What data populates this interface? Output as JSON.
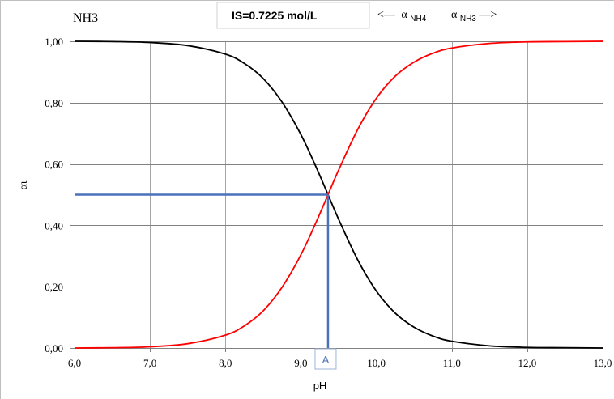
{
  "chart_data": {
    "type": "line",
    "title": "NH3",
    "subtitle": "IS=0.7225 mol/L",
    "legend": {
      "left": {
        "arrow": "<—",
        "symbol": "α",
        "sub": "NH4"
      },
      "right": {
        "symbol": "α",
        "sub": "NH3",
        "arrow": "—>"
      }
    },
    "xlabel": "pH",
    "ylabel": "αι",
    "xlim": [
      6.0,
      13.0
    ],
    "ylim": [
      0.0,
      1.0
    ],
    "x_ticks": [
      "6,0",
      "7,0",
      "8,0",
      "9,0",
      "10,0",
      "11,0",
      "12,0",
      "13,0"
    ],
    "y_ticks": [
      "0,00",
      "0,20",
      "0,40",
      "0,60",
      "0,80",
      "1,00"
    ],
    "grid": true,
    "series": [
      {
        "name": "αNH4",
        "color": "#000000",
        "x": [
          6.0,
          6.5,
          7.0,
          7.5,
          8.0,
          8.25,
          8.5,
          8.75,
          9.0,
          9.2,
          9.36,
          9.5,
          9.75,
          10.0,
          10.25,
          10.5,
          10.75,
          11.0,
          11.5,
          12.0,
          12.5,
          13.0
        ],
        "values": [
          1.0,
          0.999,
          0.996,
          0.986,
          0.958,
          0.928,
          0.879,
          0.802,
          0.696,
          0.591,
          0.5,
          0.42,
          0.289,
          0.186,
          0.114,
          0.068,
          0.039,
          0.022,
          0.007,
          0.002,
          0.001,
          0.0
        ]
      },
      {
        "name": "αNH3",
        "color": "#ff0000",
        "x": [
          6.0,
          6.5,
          7.0,
          7.5,
          8.0,
          8.25,
          8.5,
          8.75,
          9.0,
          9.2,
          9.36,
          9.5,
          9.75,
          10.0,
          10.25,
          10.5,
          10.75,
          11.0,
          11.5,
          12.0,
          12.5,
          13.0
        ],
        "values": [
          0.0,
          0.001,
          0.004,
          0.014,
          0.042,
          0.072,
          0.121,
          0.198,
          0.304,
          0.409,
          0.5,
          0.58,
          0.711,
          0.814,
          0.886,
          0.932,
          0.961,
          0.978,
          0.993,
          0.998,
          0.999,
          1.0
        ]
      }
    ],
    "annotation": {
      "label": "A",
      "x": 9.36,
      "y": 0.5,
      "color": "#4a72b8"
    }
  }
}
